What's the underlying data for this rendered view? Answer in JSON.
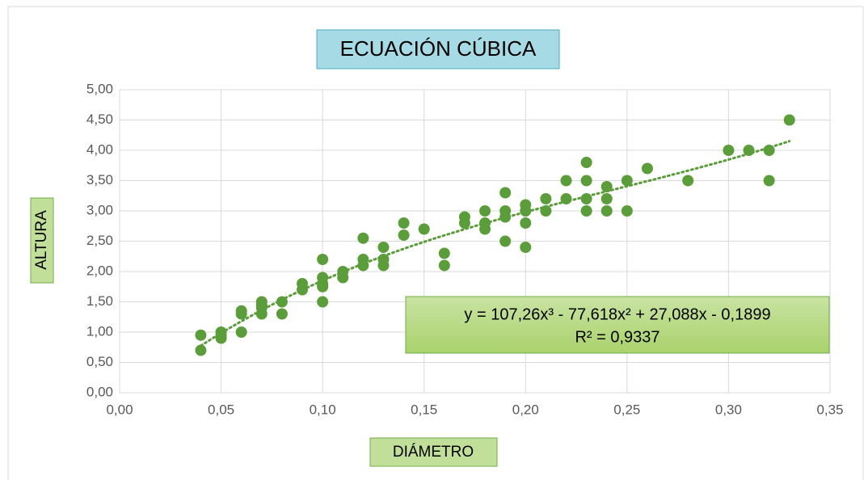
{
  "chart_data": {
    "type": "scatter",
    "title": "ECUACIÓN CÚBICA",
    "x_label": "DIÁMETRO",
    "y_label": "ALTURA",
    "color": "#5b9d3b",
    "grid": true,
    "x": [
      0.04,
      0.04,
      0.05,
      0.05,
      0.05,
      0.06,
      0.06,
      0.06,
      0.07,
      0.07,
      0.07,
      0.07,
      0.08,
      0.08,
      0.09,
      0.09,
      0.1,
      0.1,
      0.1,
      0.1,
      0.1,
      0.11,
      0.11,
      0.12,
      0.12,
      0.12,
      0.13,
      0.13,
      0.13,
      0.14,
      0.14,
      0.15,
      0.16,
      0.16,
      0.17,
      0.17,
      0.18,
      0.18,
      0.18,
      0.19,
      0.19,
      0.19,
      0.19,
      0.2,
      0.2,
      0.2,
      0.2,
      0.21,
      0.21,
      0.22,
      0.22,
      0.23,
      0.23,
      0.23,
      0.23,
      0.24,
      0.24,
      0.24,
      0.25,
      0.25,
      0.26,
      0.28,
      0.3,
      0.31,
      0.32,
      0.32,
      0.33
    ],
    "values": [
      0.95,
      0.7,
      1.0,
      0.9,
      0.95,
      1.35,
      1.3,
      1.0,
      1.5,
      1.45,
      1.3,
      1.4,
      1.5,
      1.3,
      1.8,
      1.7,
      2.2,
      1.9,
      1.8,
      1.75,
      1.5,
      2.0,
      1.9,
      2.55,
      2.2,
      2.1,
      2.4,
      2.2,
      2.1,
      2.8,
      2.6,
      2.7,
      2.3,
      2.1,
      2.9,
      2.8,
      3.0,
      2.8,
      2.7,
      3.3,
      3.0,
      2.9,
      2.5,
      3.1,
      3.0,
      2.8,
      2.4,
      3.2,
      3.0,
      3.5,
      3.2,
      3.8,
      3.5,
      3.2,
      3.0,
      3.4,
      3.2,
      3.0,
      3.5,
      3.0,
      3.7,
      3.5,
      4.0,
      4.0,
      4.0,
      3.5,
      4.5
    ],
    "trendline": {
      "equation": "y = 107,26x³ - 77,618x² + 27,088x - 0,1899",
      "r_squared": "R² = 0,9337",
      "coefficients": [
        107.26,
        -77.618,
        27.088,
        -0.1899
      ]
    },
    "xlim": [
      0,
      0.35
    ],
    "xticks": [
      {
        "value": 0,
        "label": "0,00"
      },
      {
        "value": 0.05,
        "label": "0,05"
      },
      {
        "value": 0.1,
        "label": "0,10"
      },
      {
        "value": 0.15,
        "label": "0,15"
      },
      {
        "value": 0.2,
        "label": "0,20"
      },
      {
        "value": 0.25,
        "label": "0,25"
      },
      {
        "value": 0.3,
        "label": "0,30"
      },
      {
        "value": 0.35,
        "label": "0,35"
      }
    ],
    "ylim": [
      0,
      5
    ],
    "yticks": [
      {
        "value": 0,
        "label": "0,00"
      },
      {
        "value": 0.5,
        "label": "0,50"
      },
      {
        "value": 1,
        "label": "1,00"
      },
      {
        "value": 1.5,
        "label": "1,50"
      },
      {
        "value": 2,
        "label": "2,00"
      },
      {
        "value": 2.5,
        "label": "2,50"
      },
      {
        "value": 3,
        "label": "3,00"
      },
      {
        "value": 3.5,
        "label": "3,50"
      },
      {
        "value": 4,
        "label": "4,00"
      },
      {
        "value": 4.5,
        "label": "4,50"
      },
      {
        "value": 5,
        "label": "5,00"
      }
    ]
  }
}
